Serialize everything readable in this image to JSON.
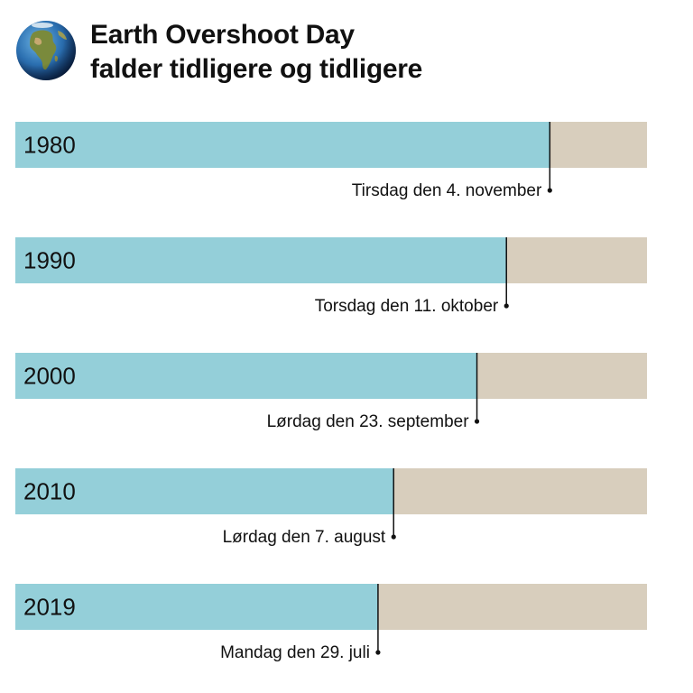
{
  "header": {
    "title_line1": "Earth Overshoot Day",
    "title_line2": "falder tidligere og tidligere",
    "icon": "earth-globe-icon"
  },
  "colors": {
    "elapsed": "#94cfd9",
    "remaining": "#d8cebd",
    "marker": "#111111"
  },
  "chart_data": {
    "type": "bar",
    "orientation": "horizontal",
    "x_unit": "day-of-year",
    "xlim": [
      1,
      365
    ],
    "categories": [
      "1980",
      "1990",
      "2000",
      "2010",
      "2019"
    ],
    "values": [
      309,
      284,
      267,
      219,
      210
    ],
    "annotations": [
      "Tirsdag den 4. november",
      "Torsdag den 11. oktober",
      "Lørdag den 23. september",
      "Lørdag den 7. august",
      "Mandag den 29. juli"
    ]
  }
}
